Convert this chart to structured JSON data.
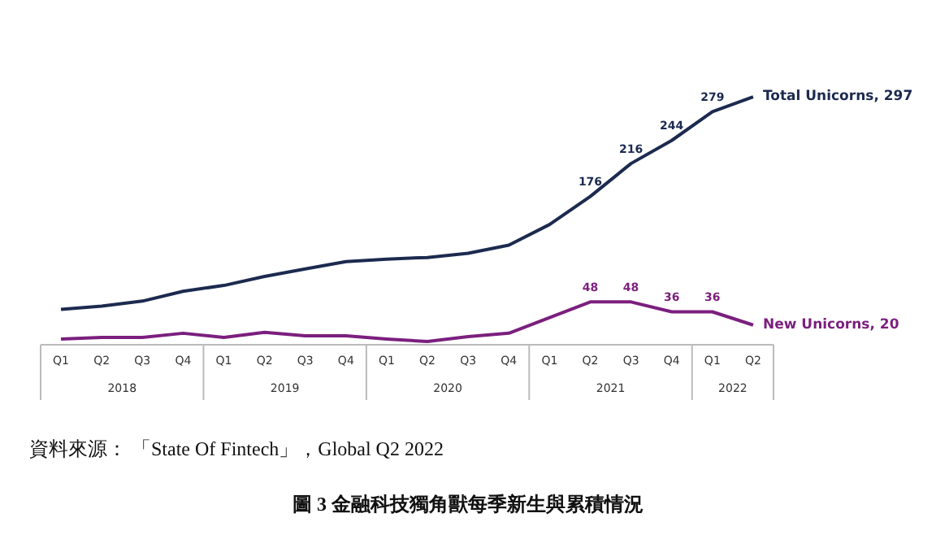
{
  "chart_data": {
    "type": "line",
    "title": "圖 3  金融科技獨角獸每季新生與累積情況",
    "categories": [
      "Q1",
      "Q2",
      "Q3",
      "Q4",
      "Q1",
      "Q2",
      "Q3",
      "Q4",
      "Q1",
      "Q2",
      "Q3",
      "Q4",
      "Q1",
      "Q2",
      "Q3",
      "Q4",
      "Q1",
      "Q2"
    ],
    "series": [
      {
        "name": "Total Unicorns, 297",
        "color": "#1c2a4f",
        "values": [
          39,
          43,
          49,
          61,
          68,
          79,
          88,
          97,
          100,
          102,
          107,
          117,
          142,
          176,
          216,
          244,
          279,
          297
        ],
        "value_labels": [
          null,
          null,
          null,
          null,
          null,
          null,
          null,
          null,
          null,
          null,
          null,
          null,
          null,
          "176",
          "216",
          "244",
          "279",
          null
        ]
      },
      {
        "name": "New Unicorns, 20",
        "color": "#7b1f7e",
        "values": [
          3,
          5,
          5,
          10,
          5,
          11,
          7,
          7,
          3,
          0,
          6,
          10,
          29,
          48,
          48,
          36,
          36,
          20
        ],
        "value_labels": [
          null,
          null,
          null,
          null,
          null,
          null,
          null,
          null,
          null,
          null,
          null,
          null,
          null,
          "48",
          "48",
          "36",
          "36",
          null
        ]
      }
    ],
    "annotations": [
      "2018",
      "2019",
      "2020",
      "2021",
      "2022",
      "資料來源： 「State Of Fintech」，Global Q2 2022"
    ],
    "grid": false,
    "legend": false,
    "marker": "none",
    "line_style": "solid"
  }
}
